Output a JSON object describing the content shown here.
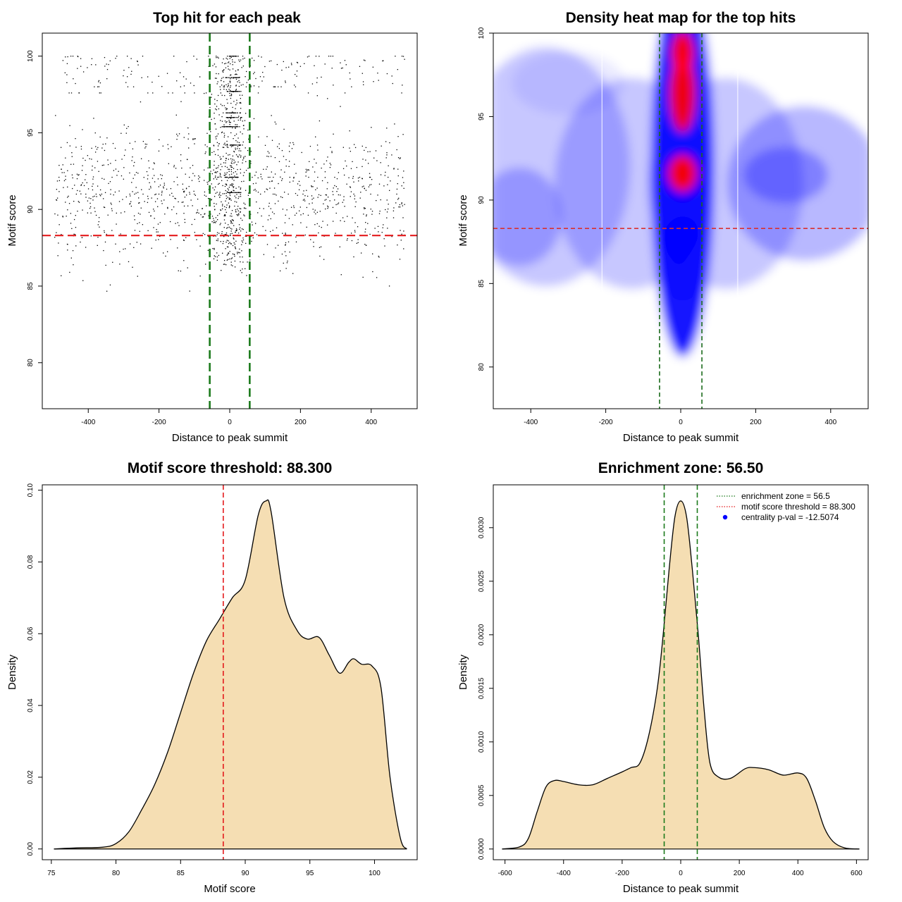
{
  "chart_data": [
    {
      "type": "scatter",
      "title": "Top hit for each peak",
      "xlabel": "Distance to peak summit",
      "ylabel": "Motif score",
      "xlim": [
        -530,
        530
      ],
      "ylim": [
        77,
        101.5
      ],
      "xticks": [
        -400,
        -200,
        0,
        200,
        400
      ],
      "yticks": [
        80,
        85,
        90,
        95,
        100
      ],
      "xtick_labels": [
        "-400",
        "-200",
        "0",
        "200",
        "400"
      ],
      "ytick_labels": [
        "80",
        "85",
        "90",
        "95",
        "100"
      ],
      "hlines": [
        88.3
      ],
      "vlines": [
        -56.5,
        56.5
      ],
      "colors": {
        "points": "#000000",
        "threshold": "#e41a1c",
        "zone": "#1b7a1b"
      }
    },
    {
      "type": "heatmap",
      "title": "Density heat map for the top hits",
      "xlabel": "Distance to peak summit",
      "ylabel": "Motif score",
      "xlim": [
        -500,
        500
      ],
      "ylim": [
        77.5,
        100
      ],
      "xticks": [
        -400,
        -200,
        0,
        200,
        400
      ],
      "yticks": [
        80,
        85,
        90,
        95,
        100
      ],
      "xtick_labels": [
        "-400",
        "-200",
        "0",
        "200",
        "400"
      ],
      "ytick_labels": [
        "80",
        "85",
        "90",
        "95",
        "100"
      ],
      "hlines": [
        88.3
      ],
      "vlines": [
        -56.5,
        56.5
      ],
      "colors": {
        "low": "#ffffff",
        "mid": "#0000ff",
        "high": "#ff0000"
      }
    },
    {
      "type": "area",
      "title": "Motif score threshold: 88.300",
      "xlabel": "Motif score",
      "ylabel": "Density",
      "xlim": [
        74.3,
        103.3
      ],
      "ylim": [
        -0.003,
        0.1015
      ],
      "xticks": [
        75,
        80,
        85,
        90,
        95,
        100
      ],
      "yticks": [
        0,
        0.02,
        0.04,
        0.06,
        0.08,
        0.1
      ],
      "xtick_labels": [
        "75",
        "80",
        "85",
        "90",
        "95",
        "100"
      ],
      "ytick_labels": [
        "0.00",
        "0.02",
        "0.04",
        "0.06",
        "0.08",
        "0.10"
      ],
      "x": [
        75.2,
        77,
        79,
        80,
        81,
        82,
        83,
        84,
        85,
        86,
        87,
        88,
        89,
        90,
        91,
        91.6,
        92,
        93,
        94,
        94.8,
        95.7,
        96.5,
        97.3,
        98,
        98.4,
        99,
        99.8,
        100.5,
        101.2,
        102,
        102.5
      ],
      "y": [
        0,
        0.0003,
        0.0005,
        0.0015,
        0.0048,
        0.011,
        0.018,
        0.027,
        0.038,
        0.049,
        0.058,
        0.064,
        0.07,
        0.075,
        0.093,
        0.097,
        0.094,
        0.07,
        0.061,
        0.0585,
        0.059,
        0.054,
        0.049,
        0.052,
        0.053,
        0.0515,
        0.051,
        0.045,
        0.02,
        0.003,
        0
      ],
      "vlines": [
        88.3
      ],
      "colors": {
        "fill": "#f5deb3",
        "line": "#000000",
        "threshold": "#e41a1c"
      }
    },
    {
      "type": "area",
      "title": "Enrichment zone: 56.50",
      "xlabel": "Distance to peak summit",
      "ylabel": "Density",
      "xlim": [
        -640,
        640
      ],
      "ylim": [
        -0.0001,
        0.0034
      ],
      "xticks": [
        -600,
        -400,
        -200,
        0,
        200,
        400,
        600
      ],
      "yticks": [
        0,
        0.0005,
        0.001,
        0.0015,
        0.002,
        0.0025,
        0.003
      ],
      "xtick_labels": [
        "-600",
        "-400",
        "-200",
        "0",
        "200",
        "400",
        "600"
      ],
      "ytick_labels": [
        "0.0000",
        "0.0005",
        "0.0010",
        "0.0015",
        "0.0020",
        "0.0025",
        "0.0030"
      ],
      "x": [
        -610,
        -550,
        -520,
        -490,
        -460,
        -430,
        -400,
        -350,
        -300,
        -250,
        -200,
        -170,
        -140,
        -110,
        -80,
        -60,
        -40,
        -20,
        0,
        20,
        40,
        60,
        80,
        100,
        130,
        170,
        220,
        250,
        300,
        350,
        400,
        430,
        460,
        490,
        520,
        560,
        610
      ],
      "y": [
        0,
        2e-05,
        0.0001,
        0.00035,
        0.00058,
        0.00064,
        0.00063,
        0.0006,
        0.0006,
        0.00066,
        0.00072,
        0.00076,
        0.0008,
        0.00105,
        0.0015,
        0.002,
        0.0026,
        0.0031,
        0.00325,
        0.0031,
        0.0026,
        0.002,
        0.0013,
        0.0008,
        0.00067,
        0.00066,
        0.00075,
        0.00076,
        0.00074,
        0.00069,
        0.00071,
        0.00066,
        0.00045,
        0.0002,
        7e-05,
        1e-05,
        0
      ],
      "vlines": [
        -56.5,
        56.5
      ],
      "legend": {
        "position": "top-right",
        "entries": [
          {
            "label": "enrichment zone = 56.5",
            "color": "#1b7a1b",
            "style": "dotted-line"
          },
          {
            "label": "motif score threshold = 88.300",
            "color": "#e41a1c",
            "style": "dotted-line"
          },
          {
            "label": "centrality p-val = -12.5074",
            "color": "#0000ff",
            "style": "dot"
          }
        ]
      },
      "colors": {
        "fill": "#f5deb3",
        "line": "#000000",
        "zone": "#1b7a1b"
      }
    }
  ]
}
